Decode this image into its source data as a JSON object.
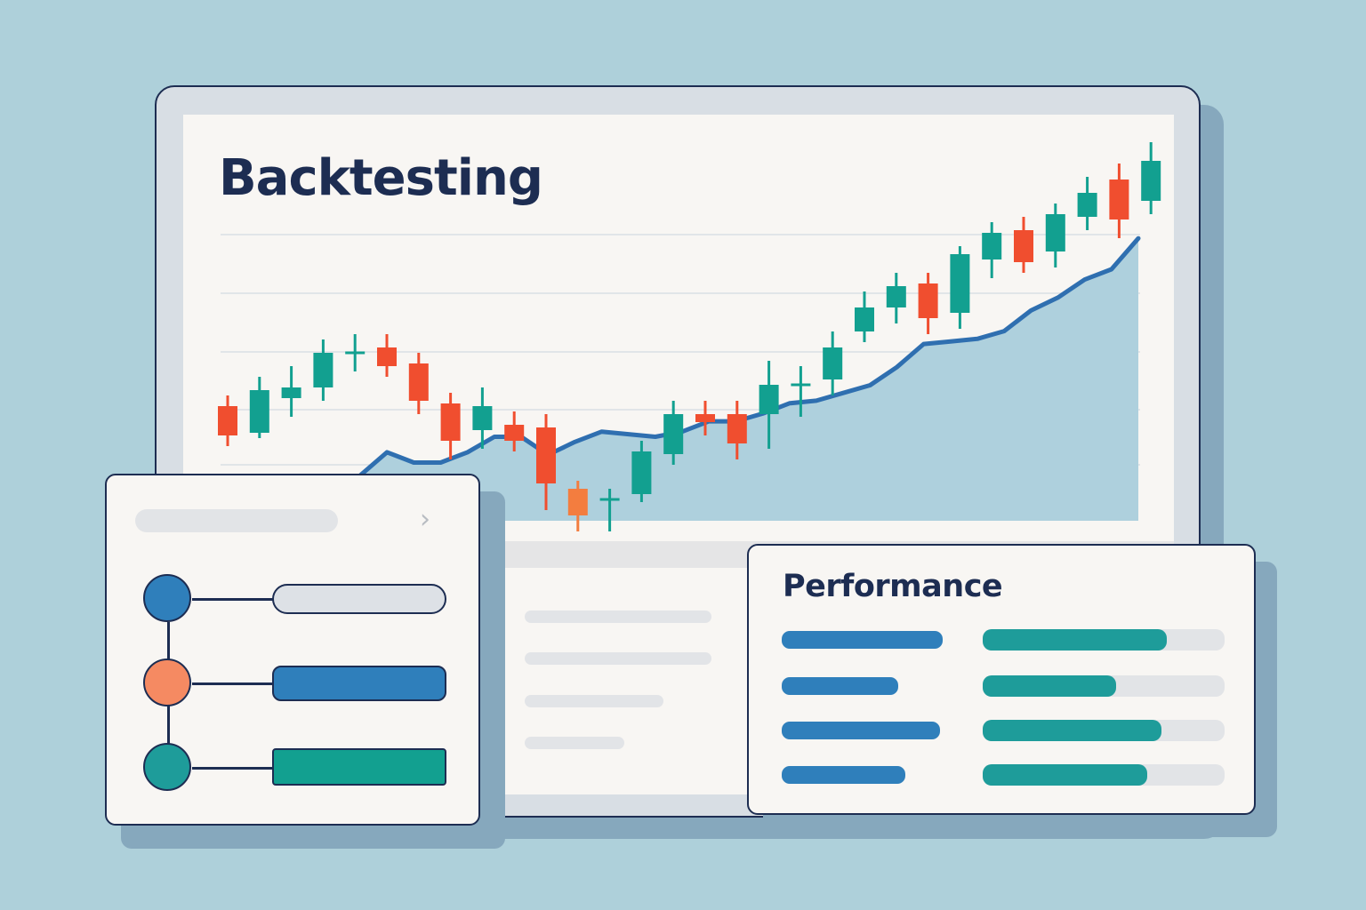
{
  "header": {
    "title": "Backtesting"
  },
  "chart_data": {
    "type": "candlestick",
    "candles": [
      {
        "o": 22,
        "c": 11,
        "h": 26,
        "l": 7
      },
      {
        "o": 12,
        "c": 28,
        "h": 33,
        "l": 10
      },
      {
        "o": 25,
        "c": 29,
        "h": 37,
        "l": 18
      },
      {
        "o": 29,
        "c": 42,
        "h": 47,
        "l": 24
      },
      {
        "o": 42,
        "c": 42,
        "h": 49,
        "l": 35
      },
      {
        "o": 44,
        "c": 37,
        "h": 49,
        "l": 33
      },
      {
        "o": 38,
        "c": 24,
        "h": 42,
        "l": 19
      },
      {
        "o": 23,
        "c": 9,
        "h": 27,
        "l": 2
      },
      {
        "o": 13,
        "c": 22,
        "h": 29,
        "l": 6
      },
      {
        "o": 15,
        "c": 9,
        "h": 20,
        "l": 5
      },
      {
        "o": 14,
        "c": -7,
        "h": 19,
        "l": -17
      },
      {
        "o": -9,
        "c": -19,
        "h": -6,
        "l": -25
      },
      {
        "o": -13,
        "c": -13,
        "h": -9,
        "l": -25
      },
      {
        "o": -11,
        "c": 5,
        "h": 9,
        "l": -14
      },
      {
        "o": 4,
        "c": 19,
        "h": 24,
        "l": 0
      },
      {
        "o": 19,
        "c": 16,
        "h": 24,
        "l": 11
      },
      {
        "o": 19,
        "c": 8,
        "h": 24,
        "l": 2
      },
      {
        "o": 19,
        "c": 30,
        "h": 39,
        "l": 6
      },
      {
        "o": 30,
        "c": 30,
        "h": 37,
        "l": 18
      },
      {
        "o": 32,
        "c": 44,
        "h": 50,
        "l": 26
      },
      {
        "o": 50,
        "c": 59,
        "h": 65,
        "l": 46
      },
      {
        "o": 59,
        "c": 67,
        "h": 72,
        "l": 53
      },
      {
        "o": 68,
        "c": 55,
        "h": 72,
        "l": 49
      },
      {
        "o": 57,
        "c": 79,
        "h": 82,
        "l": 51
      },
      {
        "o": 77,
        "c": 87,
        "h": 91,
        "l": 70
      },
      {
        "o": 88,
        "c": 76,
        "h": 93,
        "l": 72
      },
      {
        "o": 80,
        "c": 94,
        "h": 98,
        "l": 74
      },
      {
        "o": 93,
        "c": 102,
        "h": 108,
        "l": 88
      },
      {
        "o": 107,
        "c": 92,
        "h": 113,
        "l": 85
      },
      {
        "o": 99,
        "c": 114,
        "h": 121,
        "l": 94
      }
    ],
    "equity": [
      0,
      9,
      5,
      5,
      9,
      15,
      15,
      8,
      13,
      17,
      16,
      15,
      17,
      21,
      21,
      24,
      28,
      29,
      32,
      35,
      42,
      51,
      52,
      53,
      56,
      64,
      69,
      76,
      80,
      92
    ]
  },
  "left_panel": {
    "chevron": "›",
    "steps": [
      {
        "node_color": "#2f7fbb",
        "bar_color": "#dde1e6"
      },
      {
        "node_color": "#f58a62",
        "bar_color": "#2f7fbb"
      },
      {
        "node_color": "#1e9c9a",
        "bar_color": "#12a090"
      }
    ]
  },
  "performance": {
    "title": "Performance",
    "metrics": [
      {
        "name_level": 0.69,
        "bar_level": 0.76
      },
      {
        "name_level": 0.5,
        "bar_level": 0.55
      },
      {
        "name_level": 0.68,
        "bar_level": 0.74
      },
      {
        "name_level": 0.53,
        "bar_level": 0.68
      }
    ]
  },
  "colors": {
    "up": "#12a090",
    "down": "#f04e2f",
    "down_highlight": "#f37d3f",
    "equity_line": "#2f6fb0",
    "equity_area": "#aed0dd",
    "outline": "#1d2d52"
  }
}
